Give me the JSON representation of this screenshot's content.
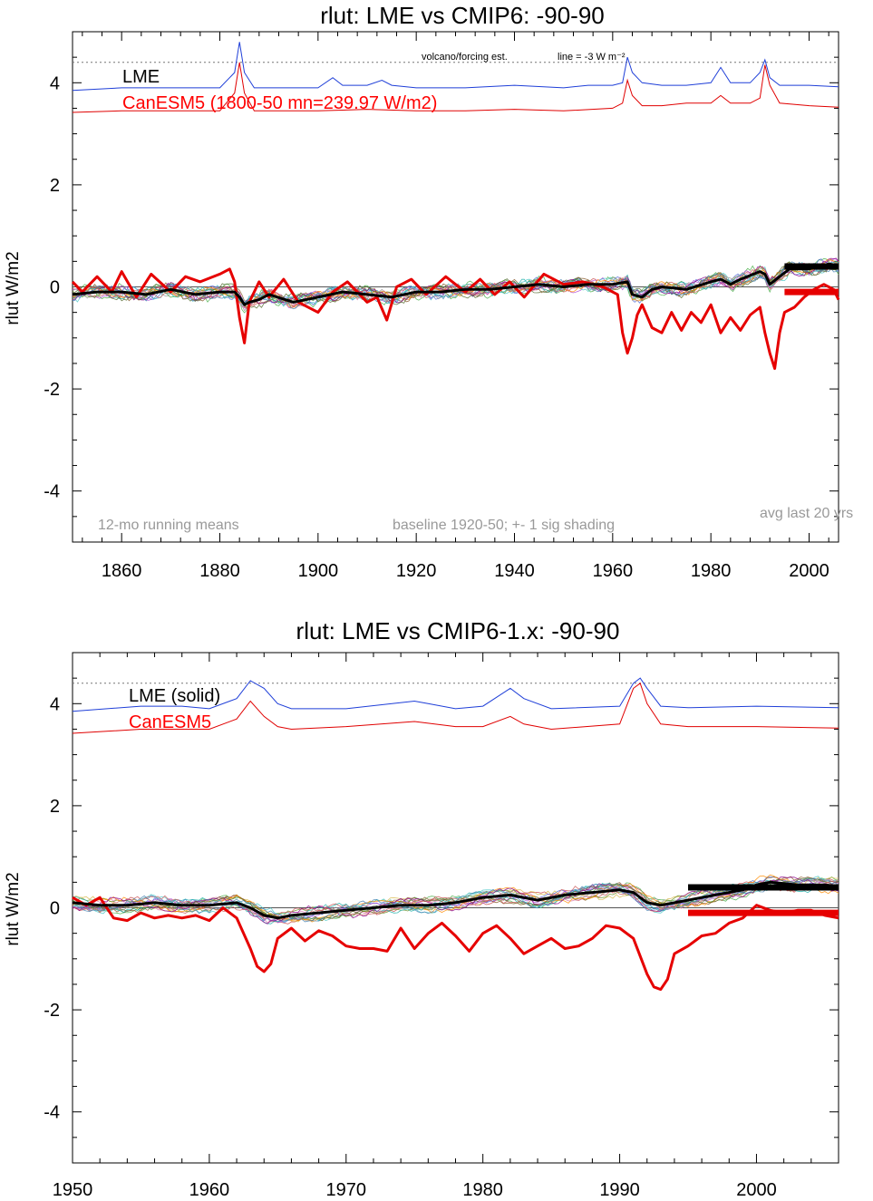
{
  "colors": {
    "forcing_line": "#1f3fd8",
    "forcing_red": "#e00000",
    "lme_mean": "#000000",
    "canesm5": "#e60000",
    "zero_line": "#555555",
    "dotted": "#777777",
    "member_palette": [
      "#c94b4b",
      "#4bb04b",
      "#4b6bd8",
      "#d8b84b",
      "#b04bd8",
      "#4bc8c8",
      "#8a5a2b",
      "#d87ab0",
      "#9a9a9a",
      "#6b8e23",
      "#ff8c00",
      "#20b2aa",
      "#8b008b",
      "#556b2f",
      "#cd5c5c",
      "#4682b4"
    ]
  },
  "chart_data": [
    {
      "type": "line",
      "title": "rlut: LME vs CMIP6: -90-90",
      "ylabel": "rlut W/m2",
      "xlim": [
        1850,
        2006
      ],
      "ylim": [
        -5,
        5
      ],
      "xticks": [
        1860,
        1880,
        1900,
        1920,
        1940,
        1960,
        1980,
        2000
      ],
      "yticks": [
        -4,
        -2,
        0,
        2,
        4
      ],
      "grid": false,
      "dotted_reference_y": 4.4,
      "legend": [
        "LME",
        "CanESM5 (1800-50 mn=239.97 W/m2)"
      ],
      "annotations": {
        "forcing_note": "volcano/forcing est.",
        "line_note": "line = -3 W m⁻²",
        "running_means": "12-mo running means",
        "baseline": "baseline 1920-50; +- 1 sig shading",
        "avg_last": "avg last 20 yrs"
      },
      "series": [
        {
          "name": "LME",
          "x": [
            1850,
            1855,
            1860,
            1865,
            1870,
            1875,
            1880,
            1883,
            1884,
            1885,
            1886,
            1888,
            1890,
            1895,
            1900,
            1905,
            1910,
            1915,
            1920,
            1925,
            1930,
            1935,
            1940,
            1945,
            1950,
            1955,
            1960,
            1963,
            1964,
            1966,
            1968,
            1970,
            1975,
            1980,
            1982,
            1984,
            1986,
            1990,
            1991,
            1992,
            1994,
            1996,
            2000,
            2004,
            2006
          ],
          "values": [
            -0.15,
            -0.1,
            -0.1,
            -0.15,
            -0.05,
            -0.15,
            -0.1,
            -0.1,
            -0.2,
            -0.35,
            -0.3,
            -0.25,
            -0.15,
            -0.3,
            -0.2,
            -0.1,
            -0.15,
            -0.2,
            -0.1,
            -0.1,
            -0.05,
            -0.05,
            0.0,
            0.05,
            0.0,
            0.05,
            0.05,
            0.1,
            -0.15,
            -0.2,
            -0.05,
            0.0,
            -0.05,
            0.1,
            0.15,
            0.05,
            0.15,
            0.3,
            0.25,
            0.05,
            0.2,
            0.35,
            0.35,
            0.45,
            0.42
          ]
        },
        {
          "name": "CanESM5 (1800-50 mn=239.97 W/m2)",
          "x": [
            1850,
            1852,
            1855,
            1858,
            1860,
            1863,
            1866,
            1870,
            1873,
            1876,
            1880,
            1882,
            1883,
            1884,
            1885,
            1886,
            1888,
            1890,
            1893,
            1896,
            1900,
            1903,
            1906,
            1910,
            1912,
            1914,
            1916,
            1919,
            1922,
            1926,
            1930,
            1933,
            1936,
            1939,
            1942,
            1946,
            1950,
            1954,
            1958,
            1961,
            1962,
            1963,
            1964,
            1965,
            1966,
            1968,
            1970,
            1972,
            1974,
            1976,
            1978,
            1980,
            1982,
            1984,
            1986,
            1988,
            1990,
            1991,
            1992,
            1993,
            1994,
            1995,
            1997,
            1999,
            2001,
            2003,
            2005,
            2006
          ],
          "values": [
            0.1,
            -0.1,
            0.2,
            -0.1,
            0.3,
            -0.2,
            0.25,
            -0.1,
            0.2,
            0.1,
            0.25,
            0.35,
            0.1,
            -0.6,
            -1.1,
            -0.3,
            0.1,
            -0.2,
            0.15,
            -0.3,
            -0.5,
            -0.1,
            0.1,
            -0.3,
            -0.2,
            -0.65,
            0.0,
            0.15,
            -0.15,
            0.2,
            -0.1,
            0.15,
            -0.15,
            0.1,
            -0.2,
            0.25,
            0.05,
            0.1,
            0.0,
            -0.15,
            -0.9,
            -1.3,
            -1.0,
            -0.55,
            -0.35,
            -0.8,
            -0.9,
            -0.5,
            -0.85,
            -0.5,
            -0.7,
            -0.35,
            -0.9,
            -0.6,
            -0.85,
            -0.55,
            -0.4,
            -0.9,
            -1.3,
            -1.6,
            -0.9,
            -0.5,
            -0.4,
            -0.2,
            -0.05,
            0.05,
            -0.05,
            -0.25
          ]
        }
      ],
      "forcing_estimates": [
        {
          "name": "LME",
          "x": [
            1850,
            1860,
            1870,
            1880,
            1883,
            1884,
            1885,
            1887,
            1890,
            1900,
            1903,
            1905,
            1910,
            1913,
            1915,
            1920,
            1930,
            1940,
            1950,
            1955,
            1960,
            1962,
            1963,
            1964,
            1966,
            1970,
            1975,
            1980,
            1982,
            1984,
            1988,
            1990,
            1991,
            1992,
            1994,
            2000,
            2006
          ],
          "values": [
            3.85,
            3.9,
            3.9,
            3.9,
            4.2,
            4.8,
            4.2,
            3.9,
            3.9,
            3.9,
            4.1,
            3.95,
            3.95,
            4.05,
            3.95,
            3.9,
            3.9,
            3.95,
            3.9,
            3.95,
            3.95,
            4.0,
            4.5,
            4.2,
            4.0,
            3.95,
            3.95,
            4.0,
            4.3,
            4.0,
            4.0,
            4.2,
            4.45,
            4.1,
            3.95,
            3.95,
            3.92
          ]
        },
        {
          "name": "CanESM5",
          "x": [
            1850,
            1860,
            1870,
            1880,
            1883,
            1884,
            1885,
            1887,
            1890,
            1900,
            1910,
            1920,
            1930,
            1940,
            1950,
            1960,
            1962,
            1963,
            1964,
            1966,
            1970,
            1975,
            1980,
            1982,
            1984,
            1988,
            1990,
            1991,
            1992,
            1994,
            2000,
            2006
          ],
          "values": [
            3.42,
            3.45,
            3.45,
            3.45,
            3.8,
            4.4,
            3.8,
            3.45,
            3.45,
            3.45,
            3.48,
            3.45,
            3.45,
            3.48,
            3.45,
            3.5,
            3.6,
            4.05,
            3.75,
            3.55,
            3.55,
            3.6,
            3.6,
            3.75,
            3.6,
            3.6,
            3.7,
            4.35,
            3.95,
            3.6,
            3.55,
            3.52
          ]
        }
      ],
      "avg_last_20yrs": {
        "x": [
          1995,
          2006
        ],
        "LME": 0.4,
        "CanESM5": -0.1
      }
    },
    {
      "type": "line",
      "title": "rlut: LME vs CMIP6-1.x: -90-90",
      "ylabel": "rlut W/m2",
      "xlim": [
        1950,
        2006
      ],
      "ylim": [
        -5,
        5
      ],
      "xticks": [
        1950,
        1960,
        1970,
        1980,
        1990,
        2000
      ],
      "yticks": [
        -4,
        -2,
        0,
        2,
        4
      ],
      "grid": false,
      "dotted_reference_y": 4.4,
      "legend": [
        "LME (solid)",
        "CanESM5"
      ],
      "series": [
        {
          "name": "LME (solid)",
          "x": [
            1950,
            1952,
            1954,
            1956,
            1958,
            1960,
            1962,
            1963,
            1964,
            1965,
            1966,
            1968,
            1970,
            1972,
            1974,
            1976,
            1978,
            1980,
            1982,
            1984,
            1986,
            1988,
            1990,
            1991,
            1992,
            1993,
            1995,
            1997,
            1999,
            2000,
            2001,
            2003,
            2005,
            2006
          ],
          "values": [
            0.1,
            0.05,
            0.05,
            0.1,
            0.05,
            0.05,
            0.1,
            0.0,
            -0.15,
            -0.2,
            -0.15,
            -0.1,
            -0.05,
            0.0,
            0.05,
            0.05,
            0.1,
            0.2,
            0.25,
            0.15,
            0.25,
            0.3,
            0.35,
            0.3,
            0.1,
            0.05,
            0.15,
            0.25,
            0.35,
            0.45,
            0.5,
            0.45,
            0.45,
            0.42
          ]
        },
        {
          "name": "CanESM5",
          "x": [
            1950,
            1951,
            1952,
            1953,
            1954,
            1955,
            1956,
            1957,
            1958,
            1959,
            1960,
            1961,
            1962,
            1963,
            1963.5,
            1964,
            1964.5,
            1965,
            1966,
            1967,
            1968,
            1969,
            1970,
            1971,
            1972,
            1973,
            1974,
            1975,
            1976,
            1977,
            1978,
            1979,
            1980,
            1981,
            1982,
            1983,
            1984,
            1985,
            1986,
            1987,
            1988,
            1989,
            1990,
            1991,
            1992,
            1992.5,
            1993,
            1993.5,
            1994,
            1995,
            1996,
            1997,
            1998,
            1999,
            2000,
            2001,
            2002,
            2003,
            2004,
            2005,
            2006
          ],
          "values": [
            0.2,
            0.05,
            0.2,
            -0.2,
            -0.25,
            -0.1,
            -0.2,
            -0.15,
            -0.2,
            -0.15,
            -0.25,
            0.0,
            -0.2,
            -0.8,
            -1.15,
            -1.25,
            -1.1,
            -0.6,
            -0.4,
            -0.65,
            -0.45,
            -0.55,
            -0.75,
            -0.8,
            -0.8,
            -0.85,
            -0.4,
            -0.8,
            -0.5,
            -0.3,
            -0.55,
            -0.85,
            -0.5,
            -0.35,
            -0.6,
            -0.9,
            -0.75,
            -0.6,
            -0.8,
            -0.75,
            -0.6,
            -0.35,
            -0.4,
            -0.6,
            -1.3,
            -1.55,
            -1.6,
            -1.4,
            -0.9,
            -0.75,
            -0.55,
            -0.5,
            -0.3,
            -0.2,
            0.05,
            -0.05,
            -0.1,
            -0.05,
            -0.05,
            -0.15,
            -0.2
          ]
        }
      ],
      "forcing_estimates": [
        {
          "name": "LME",
          "x": [
            1950,
            1955,
            1958,
            1960,
            1962,
            1963,
            1964,
            1965,
            1966,
            1970,
            1975,
            1976,
            1978,
            1980,
            1982,
            1983,
            1985,
            1990,
            1991,
            1991.5,
            1992,
            1993,
            1995,
            2000,
            2006
          ],
          "values": [
            3.85,
            3.95,
            3.95,
            3.9,
            4.1,
            4.45,
            4.3,
            4.0,
            3.9,
            3.9,
            4.05,
            4.0,
            3.9,
            3.95,
            4.3,
            4.1,
            3.9,
            3.95,
            4.4,
            4.5,
            4.3,
            3.95,
            3.92,
            3.95,
            3.92
          ]
        },
        {
          "name": "CanESM5",
          "x": [
            1950,
            1955,
            1960,
            1962,
            1963,
            1964,
            1965,
            1966,
            1970,
            1975,
            1978,
            1980,
            1982,
            1983,
            1985,
            1990,
            1991,
            1991.5,
            1992,
            1993,
            1995,
            2000,
            2006
          ],
          "values": [
            3.42,
            3.5,
            3.5,
            3.7,
            4.05,
            3.75,
            3.55,
            3.5,
            3.55,
            3.65,
            3.55,
            3.55,
            3.75,
            3.6,
            3.5,
            3.6,
            4.3,
            4.4,
            4.0,
            3.6,
            3.55,
            3.55,
            3.52
          ]
        }
      ],
      "avg_last_20yrs": {
        "x": [
          1995,
          2006
        ],
        "LME": 0.4,
        "CanESM5": -0.1
      }
    }
  ]
}
